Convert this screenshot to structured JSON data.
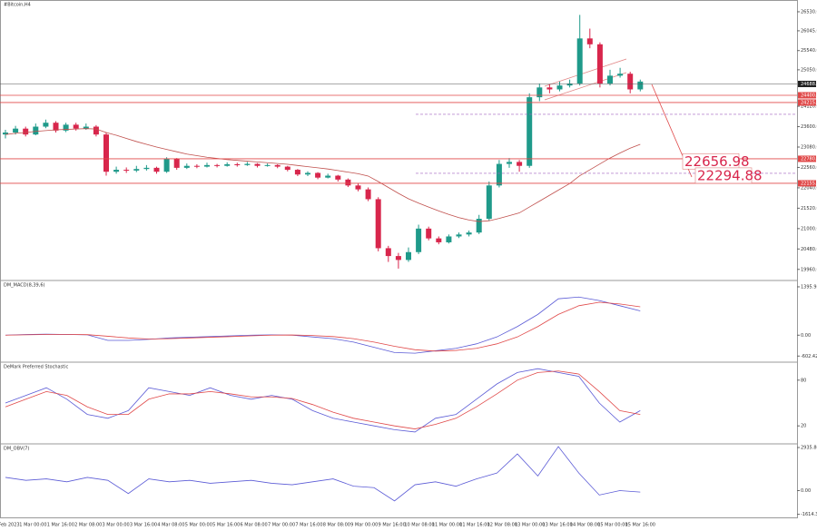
{
  "chart_data": {
    "type": "candlestick",
    "title": "#Bitcoin,H4",
    "up_color": "#1f9a8a",
    "down_color": "#d8264c",
    "ylim": [
      19700,
      26830
    ],
    "yticks": [
      {
        "value": 19960,
        "label": "19960.00"
      },
      {
        "value": 20480,
        "label": "20480.00"
      },
      {
        "value": 21000,
        "label": "21000.00"
      },
      {
        "value": 21520,
        "label": "21520.00"
      },
      {
        "value": 22040,
        "label": "22040.00"
      },
      {
        "value": 22560,
        "label": "22560.00"
      },
      {
        "value": 23080,
        "label": "23080.00"
      },
      {
        "value": 23600,
        "label": "23600.00"
      },
      {
        "value": 24120,
        "label": "24120.00"
      },
      {
        "value": 25050,
        "label": "25050.00"
      },
      {
        "value": 25540,
        "label": "25540.00"
      },
      {
        "value": 26045,
        "label": "26045.00"
      },
      {
        "value": 26530,
        "label": "26530.00"
      }
    ],
    "ohlc": [
      [
        23400,
        23520,
        23300,
        23450
      ],
      [
        23450,
        23620,
        23400,
        23550
      ],
      [
        23550,
        23600,
        23350,
        23400
      ],
      [
        23400,
        23680,
        23380,
        23600
      ],
      [
        23600,
        23780,
        23560,
        23700
      ],
      [
        23700,
        23740,
        23450,
        23500
      ],
      [
        23500,
        23700,
        23460,
        23650
      ],
      [
        23650,
        23700,
        23500,
        23550
      ],
      [
        23550,
        23680,
        23520,
        23600
      ],
      [
        23600,
        23640,
        23350,
        23400
      ],
      [
        23400,
        23450,
        22350,
        22450
      ],
      [
        22450,
        22580,
        22400,
        22500
      ],
      [
        22500,
        22560,
        22420,
        22480
      ],
      [
        22480,
        22600,
        22440,
        22520
      ],
      [
        22520,
        22620,
        22480,
        22550
      ],
      [
        22550,
        22580,
        22400,
        22450
      ],
      [
        22450,
        22820,
        22420,
        22780
      ],
      [
        22780,
        22800,
        22500,
        22550
      ],
      [
        22550,
        22660,
        22520,
        22600
      ],
      [
        22600,
        22640,
        22540,
        22580
      ],
      [
        22580,
        22680,
        22560,
        22620
      ],
      [
        22620,
        22650,
        22560,
        22600
      ],
      [
        22600,
        22690,
        22580,
        22640
      ],
      [
        22640,
        22680,
        22580,
        22620
      ],
      [
        22620,
        22700,
        22600,
        22650
      ],
      [
        22650,
        22670,
        22560,
        22600
      ],
      [
        22600,
        22660,
        22580,
        22620
      ],
      [
        22620,
        22640,
        22540,
        22580
      ],
      [
        22580,
        22600,
        22460,
        22500
      ],
      [
        22500,
        22520,
        22340,
        22380
      ],
      [
        22380,
        22460,
        22340,
        22420
      ],
      [
        22420,
        22440,
        22260,
        22300
      ],
      [
        22300,
        22400,
        22280,
        22350
      ],
      [
        22350,
        22370,
        22200,
        22250
      ],
      [
        22250,
        22280,
        22060,
        22100
      ],
      [
        22100,
        22150,
        21950,
        22000
      ],
      [
        22000,
        22050,
        21700,
        21750
      ],
      [
        21750,
        21800,
        20420,
        20500
      ],
      [
        20500,
        20560,
        20150,
        20300
      ],
      [
        20300,
        20380,
        19980,
        20200
      ],
      [
        20200,
        20520,
        20150,
        20400
      ],
      [
        20400,
        21100,
        20350,
        21000
      ],
      [
        21000,
        21050,
        20700,
        20750
      ],
      [
        20750,
        20800,
        20600,
        20650
      ],
      [
        20650,
        20850,
        20620,
        20800
      ],
      [
        20800,
        20900,
        20760,
        20850
      ],
      [
        20850,
        20950,
        20800,
        20900
      ],
      [
        20900,
        21350,
        20860,
        21250
      ],
      [
        21250,
        22200,
        21200,
        22100
      ],
      [
        22100,
        22750,
        22050,
        22650
      ],
      [
        22650,
        22800,
        22550,
        22700
      ],
      [
        22700,
        22750,
        22450,
        22600
      ],
      [
        22600,
        24450,
        22550,
        24350
      ],
      [
        24350,
        24700,
        24250,
        24600
      ],
      [
        24600,
        24680,
        24450,
        24550
      ],
      [
        24550,
        24750,
        24500,
        24650
      ],
      [
        24650,
        24800,
        24600,
        24700
      ],
      [
        24700,
        26450,
        24650,
        25850
      ],
      [
        25850,
        26100,
        25600,
        25700
      ],
      [
        25700,
        25750,
        24600,
        24700
      ],
      [
        24700,
        25050,
        24650,
        24900
      ],
      [
        24900,
        25100,
        24850,
        24950
      ],
      [
        24950,
        25000,
        24450,
        24550
      ],
      [
        24550,
        24800,
        24500,
        24750
      ]
    ],
    "overlay": {
      "color": "#c0504d",
      "values": [
        23400,
        23430,
        23450,
        23480,
        23500,
        23520,
        23530,
        23540,
        23550,
        23540,
        23450,
        23380,
        23300,
        23220,
        23150,
        23080,
        23020,
        22960,
        22900,
        22860,
        22820,
        22790,
        22760,
        22740,
        22720,
        22700,
        22680,
        22660,
        22640,
        22610,
        22580,
        22550,
        22520,
        22480,
        22440,
        22400,
        22340,
        22200,
        22050,
        21900,
        21760,
        21650,
        21550,
        21450,
        21360,
        21280,
        21220,
        21180,
        21200,
        21260,
        21330,
        21400,
        21550,
        21700,
        21850,
        22000,
        22150,
        22350,
        22500,
        22650,
        22800,
        22930,
        23050,
        23150
      ]
    },
    "current": {
      "value": 24688.53,
      "label": "24688.53"
    },
    "h_lines": [
      {
        "value": 24400,
        "label": "24400.00"
      },
      {
        "value": 24215,
        "label": "24215.00"
      },
      {
        "value": 22780,
        "label": "22780.00"
      },
      {
        "value": 22155,
        "label": "22155.00"
      }
    ],
    "fib_levels": [
      23915,
      22410
    ],
    "targets": [
      22656.98,
      22294.88
    ],
    "x_labels": [
      "28 Feb 2023",
      "1 Mar 00:00",
      "1 Mar 16:00",
      "2 Mar 08:00",
      "3 Mar 00:00",
      "3 Mar 16:00",
      "4 Mar 08:00",
      "5 Mar 00:00",
      "5 Mar 16:00",
      "6 Mar 08:00",
      "7 Mar 00:00",
      "7 Mar 16:00",
      "8 Mar 08:00",
      "9 Mar 00:00",
      "9 Mar 16:00",
      "10 Mar 08:00",
      "11 Mar 00:00",
      "11 Mar 16:00",
      "12 Mar 08:00",
      "13 Mar 00:00",
      "13 Mar 16:00",
      "14 Mar 08:00",
      "15 Mar 00:00",
      "15 Mar 16:00"
    ],
    "panels": [
      {
        "title": "DM_MACD(8,39,6)",
        "ylim": [
          -700,
          1500
        ],
        "yticks": [
          {
            "value": 1395.93,
            "label": "1395.93"
          },
          {
            "value": 0,
            "label": "0.00"
          },
          {
            "value": -602.42,
            "label": "-602.42"
          }
        ],
        "series": [
          {
            "color": "#5b5bd6",
            "values": [
              0,
              20,
              30,
              20,
              10,
              -150,
              -150,
              -120,
              -80,
              -60,
              -40,
              -20,
              0,
              10,
              0,
              -50,
              -100,
              -200,
              -350,
              -500,
              -520,
              -450,
              -380,
              -250,
              -50,
              250,
              600,
              1050,
              1100,
              1000,
              850,
              700
            ]
          },
          {
            "color": "#e04848",
            "values": [
              0,
              10,
              20,
              20,
              15,
              -30,
              -80,
              -110,
              -100,
              -80,
              -60,
              -40,
              -20,
              0,
              5,
              -10,
              -40,
              -100,
              -200,
              -320,
              -420,
              -460,
              -440,
              -380,
              -250,
              -50,
              250,
              600,
              850,
              950,
              900,
              820
            ]
          }
        ]
      },
      {
        "title": "DeMark Preferred Stochastic",
        "ylim": [
          0,
          100
        ],
        "yticks": [
          20,
          80
        ],
        "series": [
          {
            "color": "#5b5bd6",
            "values": [
              50,
              60,
              70,
              55,
              35,
              30,
              40,
              70,
              65,
              60,
              70,
              60,
              55,
              60,
              55,
              40,
              30,
              25,
              20,
              15,
              12,
              30,
              35,
              55,
              75,
              90,
              95,
              90,
              85,
              50,
              25,
              40
            ]
          },
          {
            "color": "#e04848",
            "values": [
              45,
              55,
              65,
              60,
              45,
              35,
              35,
              55,
              62,
              62,
              65,
              62,
              58,
              58,
              56,
              48,
              38,
              30,
              25,
              20,
              16,
              22,
              30,
              45,
              62,
              80,
              90,
              92,
              88,
              65,
              40,
              35
            ]
          }
        ]
      },
      {
        "title": "DM_OBV(7)",
        "ylim": [
          -1700,
          3000
        ],
        "yticks": [
          {
            "value": 2935.8,
            "label": "2935.80"
          },
          {
            "value": 0,
            "label": "0.00"
          },
          {
            "value": -1614.39,
            "label": "-1614.39"
          }
        ],
        "series": [
          {
            "color": "#5b5bd6",
            "values": [
              900,
              700,
              800,
              600,
              900,
              700,
              -200,
              800,
              600,
              700,
              500,
              600,
              700,
              500,
              400,
              600,
              800,
              300,
              200,
              -700,
              400,
              600,
              300,
              800,
              1200,
              2500,
              1000,
              3000,
              1200,
              -300,
              0,
              -100
            ]
          }
        ]
      }
    ]
  }
}
